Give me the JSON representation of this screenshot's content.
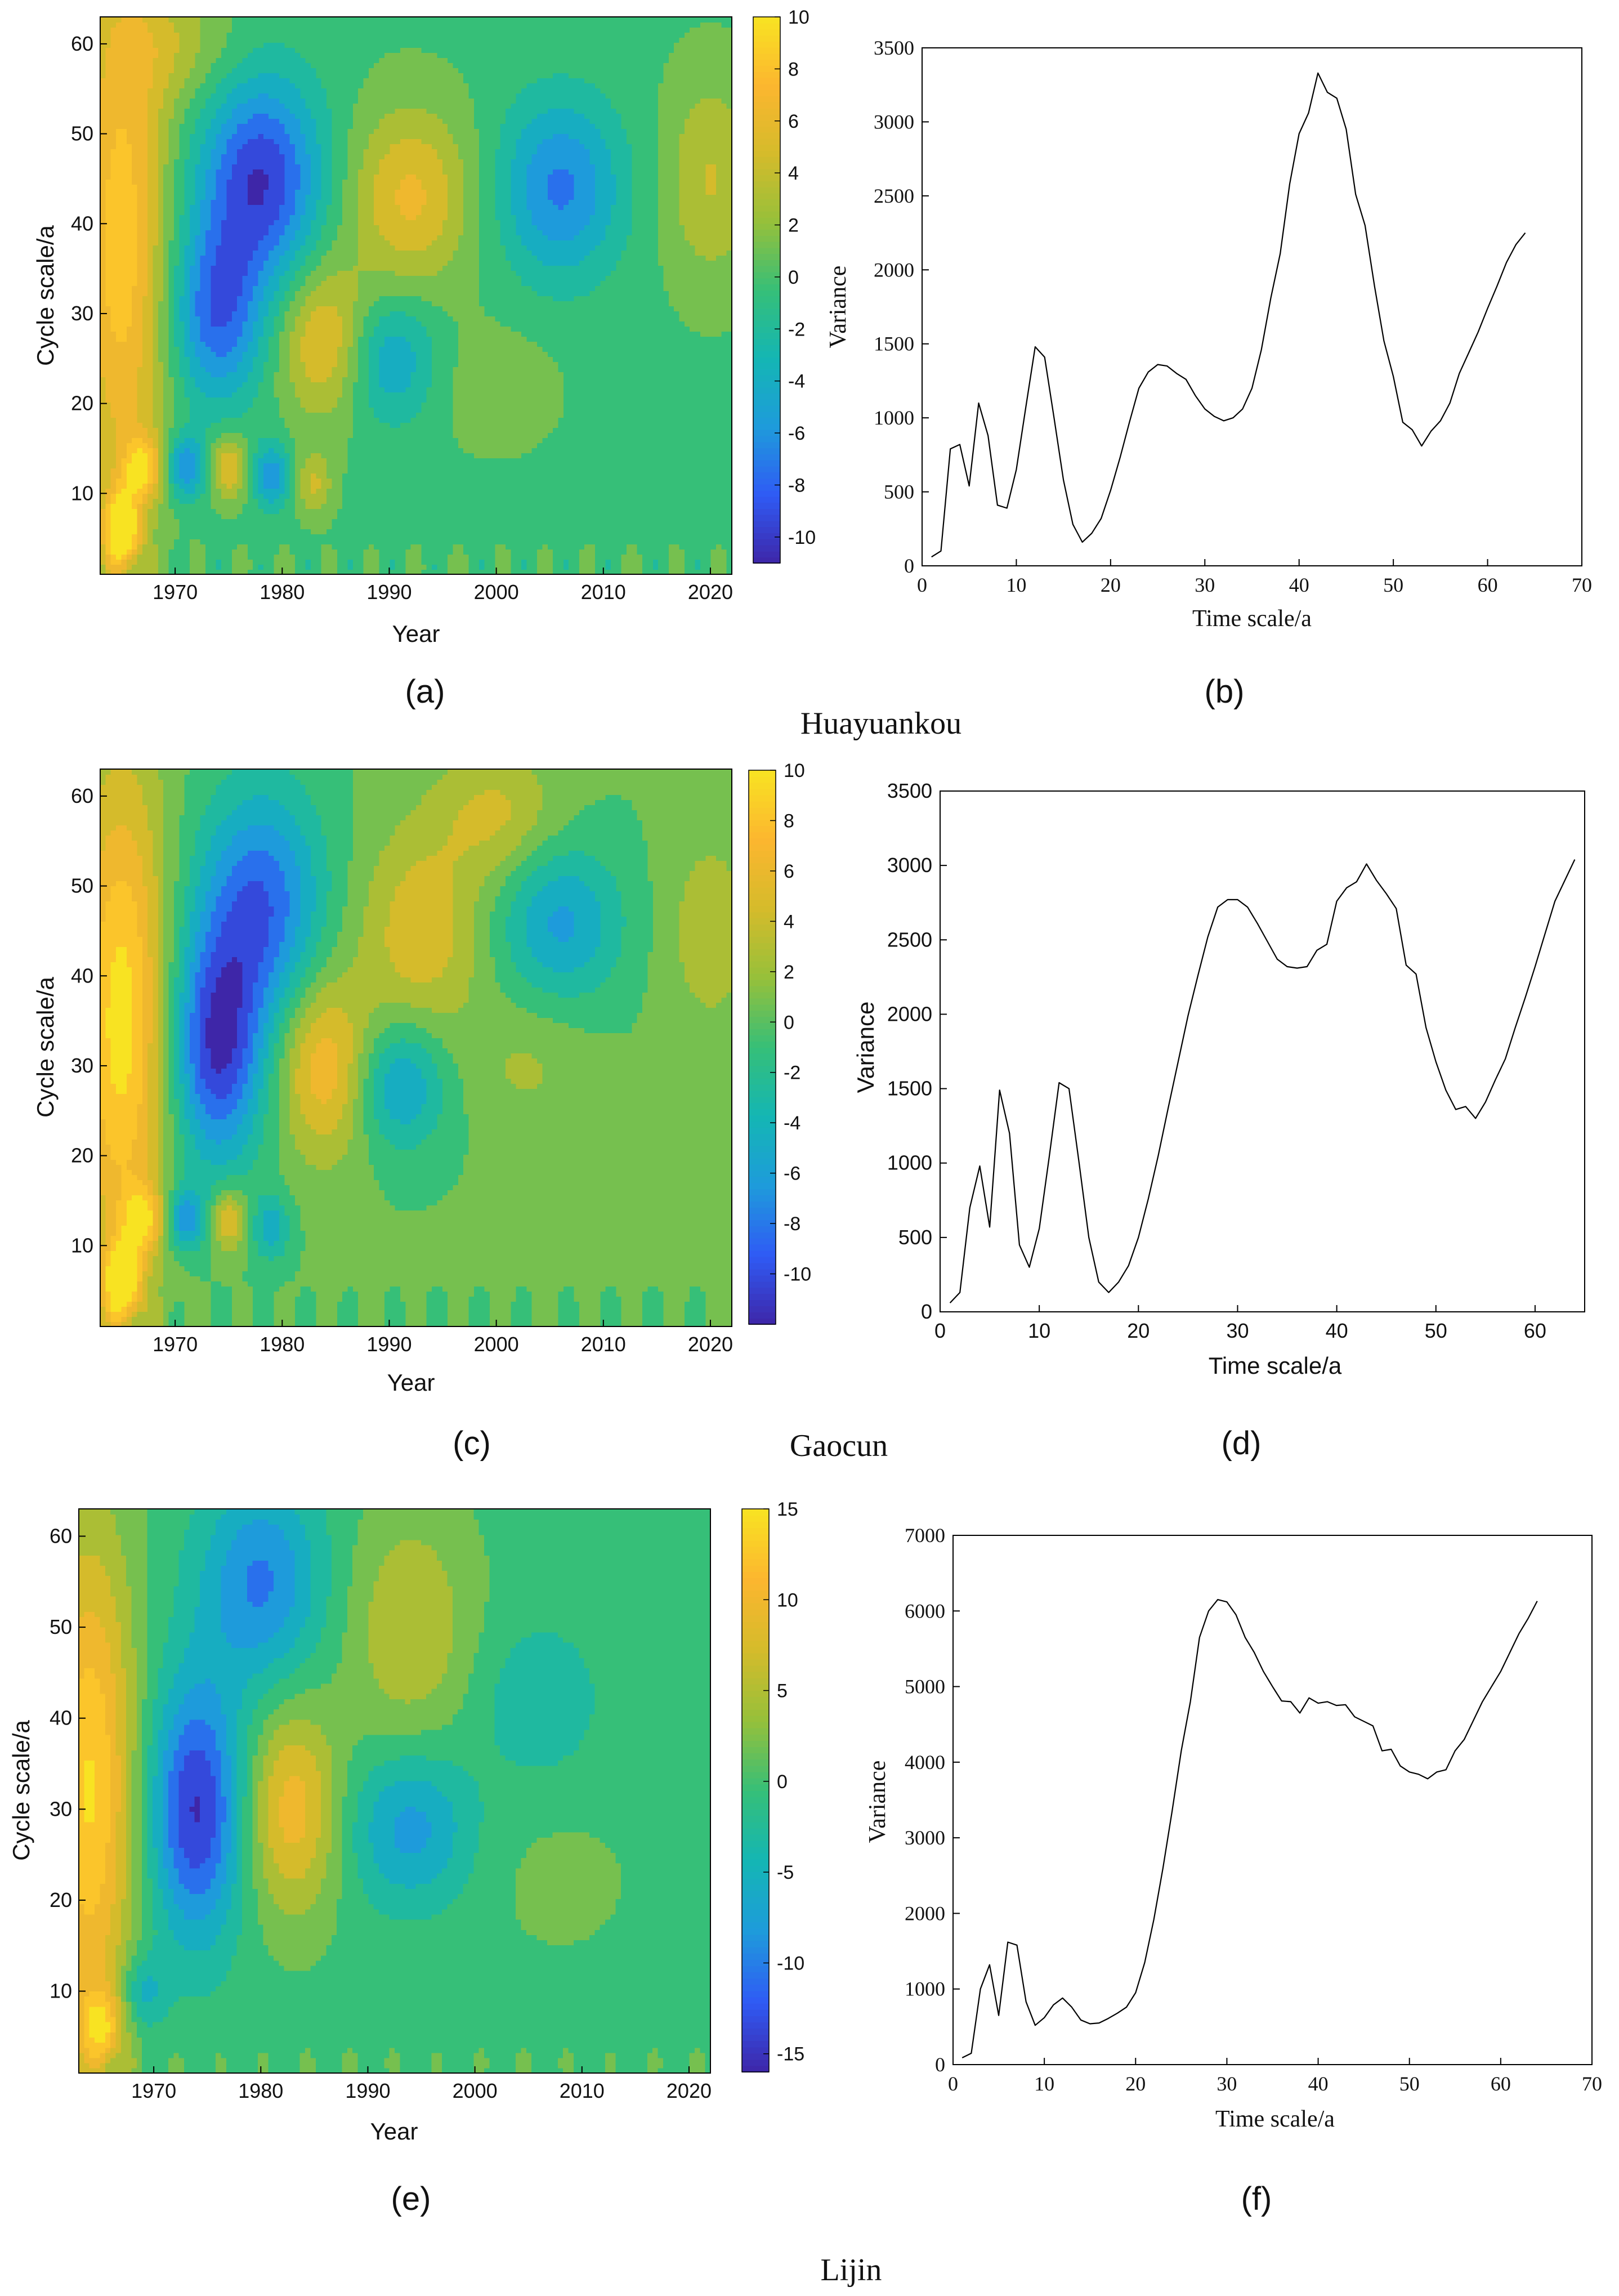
{
  "figure": {
    "panel_labels": [
      "(a)",
      "(b)",
      "(c)",
      "(d)",
      "(e)",
      "(f)"
    ],
    "station_names": [
      "Huayuankou",
      "Gaocun",
      "Lijin"
    ]
  },
  "chart_data": [
    {
      "id": "a",
      "type": "heatmap",
      "station": "Huayuankou",
      "title": "",
      "xlabel": "Year",
      "ylabel": "Cycle scale/a",
      "xlim": [
        1963,
        2022
      ],
      "ylim": [
        1,
        63
      ],
      "xticks": [
        1970,
        1980,
        1990,
        2000,
        2010,
        2020
      ],
      "yticks": [
        10,
        20,
        30,
        40,
        50,
        60
      ],
      "colorbar": {
        "range": [
          -11,
          10
        ],
        "ticks": [
          10,
          8,
          6,
          4,
          2,
          0,
          -2,
          -4,
          -6,
          -8,
          -10
        ]
      },
      "colormap": [
        "#3e26a8",
        "#2f5bf5",
        "#1e9bdb",
        "#14b6b4",
        "#36bf78",
        "#96c03a",
        "#d5bb2b",
        "#fcb62f",
        "#f8e322"
      ],
      "ridges": [
        {
          "year": 1965,
          "scale": 38,
          "value": 8.5,
          "sx": 3,
          "ss": 22
        },
        {
          "year": 1965,
          "scale": 6,
          "value": 11,
          "sx": 1.2,
          "ss": 3
        },
        {
          "year": 1967,
          "scale": 13,
          "value": 7,
          "sx": 1.3,
          "ss": 2.5
        },
        {
          "year": 1971,
          "scale": 13,
          "value": -7,
          "sx": 1.3,
          "ss": 2.5
        },
        {
          "year": 1975,
          "scale": 13,
          "value": 6,
          "sx": 1.2,
          "ss": 2.5
        },
        {
          "year": 1979,
          "scale": 12,
          "value": -6,
          "sx": 1.2,
          "ss": 2.5
        },
        {
          "year": 1983,
          "scale": 11,
          "value": 4,
          "sx": 1.2,
          "ss": 2.5
        },
        {
          "year": 1974,
          "scale": 30,
          "value": -8,
          "sx": 3,
          "ss": 7
        },
        {
          "year": 1978,
          "scale": 45,
          "value": -10,
          "sx": 4,
          "ss": 8
        },
        {
          "year": 1984,
          "scale": 27,
          "value": 6,
          "sx": 3,
          "ss": 6
        },
        {
          "year": 1992,
          "scale": 43,
          "value": 6,
          "sx": 4,
          "ss": 7
        },
        {
          "year": 1990,
          "scale": 25,
          "value": -5,
          "sx": 3,
          "ss": 5
        },
        {
          "year": 2006,
          "scale": 44,
          "value": -7,
          "sx": 4,
          "ss": 7
        },
        {
          "year": 2020,
          "scale": 45,
          "value": 4,
          "sx": 3,
          "ss": 8
        },
        {
          "year": 2000,
          "scale": 22,
          "value": 1.5,
          "sx": 4,
          "ss": 5
        },
        {
          "year": 1970,
          "scale": 60,
          "value": 3,
          "sx": 4,
          "ss": 5
        }
      ]
    },
    {
      "id": "b",
      "type": "line",
      "station": "Huayuankou",
      "title": "",
      "xlabel": "Time scale/a",
      "ylabel": "Variance",
      "xlim": [
        0,
        70
      ],
      "ylim": [
        0,
        3500
      ],
      "xticks": [
        0,
        10,
        20,
        30,
        40,
        50,
        60,
        70
      ],
      "yticks": [
        0,
        500,
        1000,
        1500,
        2000,
        2500,
        3000,
        3500
      ],
      "x": [
        1,
        2,
        3,
        4,
        5,
        6,
        7,
        8,
        9,
        10,
        11,
        12,
        13,
        14,
        15,
        16,
        17,
        18,
        19,
        20,
        21,
        22,
        23,
        24,
        25,
        26,
        27,
        28,
        29,
        30,
        31,
        32,
        33,
        34,
        35,
        36,
        37,
        38,
        39,
        40,
        41,
        42,
        43,
        44,
        45,
        46,
        47,
        48,
        49,
        50,
        51,
        52,
        53,
        54,
        55,
        56,
        57,
        58,
        59,
        60,
        61,
        62,
        63,
        64
      ],
      "y": [
        60,
        100,
        790,
        820,
        540,
        1100,
        880,
        410,
        390,
        650,
        1070,
        1480,
        1410,
        1000,
        580,
        280,
        160,
        220,
        320,
        510,
        730,
        970,
        1200,
        1310,
        1360,
        1350,
        1300,
        1260,
        1150,
        1060,
        1010,
        980,
        1000,
        1060,
        1200,
        1460,
        1810,
        2110,
        2580,
        2920,
        3060,
        3330,
        3200,
        3160,
        2950,
        2510,
        2300,
        1890,
        1520,
        1280,
        970,
        920,
        810,
        910,
        980,
        1100,
        1300,
        1440,
        1580,
        1740,
        1890,
        2050,
        2170,
        2250
      ]
    },
    {
      "id": "c",
      "type": "heatmap",
      "station": "Gaocun",
      "title": "",
      "xlabel": "Year",
      "ylabel": "Cycle scale/a",
      "xlim": [
        1963,
        2022
      ],
      "ylim": [
        1,
        63
      ],
      "xticks": [
        1970,
        1980,
        1990,
        2000,
        2010,
        2020
      ],
      "yticks": [
        10,
        20,
        30,
        40,
        50,
        60
      ],
      "colorbar": {
        "range": [
          -12,
          10
        ],
        "ticks": [
          10,
          8,
          6,
          4,
          2,
          0,
          -2,
          -4,
          -6,
          -8,
          -10
        ]
      },
      "colormap": [
        "#3e26a8",
        "#2f5bf5",
        "#1e9bdb",
        "#14b6b4",
        "#36bf78",
        "#96c03a",
        "#d5bb2b",
        "#fcb62f",
        "#f8e322"
      ],
      "ridges": [
        {
          "year": 1965,
          "scale": 35,
          "value": 10,
          "sx": 3,
          "ss": 20
        },
        {
          "year": 1965,
          "scale": 6,
          "value": 11,
          "sx": 1.2,
          "ss": 3
        },
        {
          "year": 1967,
          "scale": 13,
          "value": 7,
          "sx": 1.3,
          "ss": 2.5
        },
        {
          "year": 1971,
          "scale": 13,
          "value": -7,
          "sx": 1.3,
          "ss": 2.5
        },
        {
          "year": 1975,
          "scale": 13,
          "value": 6,
          "sx": 1.2,
          "ss": 2.5
        },
        {
          "year": 1979,
          "scale": 12,
          "value": -5,
          "sx": 1.2,
          "ss": 2.5
        },
        {
          "year": 1974,
          "scale": 32,
          "value": -11,
          "sx": 3,
          "ss": 9
        },
        {
          "year": 1978,
          "scale": 48,
          "value": -9,
          "sx": 4,
          "ss": 9
        },
        {
          "year": 1984,
          "scale": 30,
          "value": 7,
          "sx": 3,
          "ss": 7
        },
        {
          "year": 1993,
          "scale": 45,
          "value": 5,
          "sx": 4,
          "ss": 8
        },
        {
          "year": 1991,
          "scale": 28,
          "value": -6,
          "sx": 3,
          "ss": 5
        },
        {
          "year": 2003,
          "scale": 30,
          "value": 2,
          "sx": 4,
          "ss": 5
        },
        {
          "year": 2006,
          "scale": 46,
          "value": -6,
          "sx": 4,
          "ss": 6
        },
        {
          "year": 2020,
          "scale": 45,
          "value": 3,
          "sx": 3,
          "ss": 8
        },
        {
          "year": 2000,
          "scale": 58,
          "value": 4,
          "sx": 4,
          "ss": 5
        }
      ]
    },
    {
      "id": "d",
      "type": "line",
      "station": "Gaocun",
      "title": "",
      "xlabel": "Time scale/a",
      "ylabel": "Variance",
      "xlim": [
        0,
        65
      ],
      "ylim": [
        0,
        3500
      ],
      "xticks": [
        0,
        10,
        20,
        30,
        40,
        50,
        60
      ],
      "yticks": [
        0,
        500,
        1000,
        1500,
        2000,
        2500,
        3000,
        3500
      ],
      "x": [
        1,
        2,
        3,
        4,
        5,
        6,
        7,
        8,
        9,
        10,
        11,
        12,
        13,
        14,
        15,
        16,
        17,
        18,
        19,
        20,
        21,
        22,
        23,
        24,
        25,
        26,
        27,
        28,
        29,
        30,
        31,
        32,
        33,
        34,
        35,
        36,
        37,
        38,
        39,
        40,
        41,
        42,
        43,
        44,
        45,
        46,
        47,
        48,
        49,
        50,
        51,
        52,
        53,
        54,
        55,
        56,
        57,
        58,
        59,
        60,
        61,
        62,
        63,
        64
      ],
      "y": [
        60,
        130,
        700,
        980,
        570,
        1490,
        1200,
        450,
        300,
        560,
        1040,
        1540,
        1500,
        1010,
        500,
        200,
        130,
        200,
        310,
        500,
        760,
        1050,
        1370,
        1680,
        1990,
        2260,
        2520,
        2720,
        2770,
        2770,
        2720,
        2610,
        2490,
        2370,
        2320,
        2310,
        2320,
        2430,
        2470,
        2760,
        2850,
        2890,
        3010,
        2900,
        2810,
        2710,
        2330,
        2270,
        1910,
        1680,
        1490,
        1360,
        1380,
        1300,
        1410,
        1560,
        1700,
        1910,
        2110,
        2320,
        2540,
        2760,
        2900,
        3040
      ]
    },
    {
      "id": "e",
      "type": "heatmap",
      "station": "Lijin",
      "title": "",
      "xlabel": "Year",
      "ylabel": "Cycle scale/a",
      "xlim": [
        1963,
        2022
      ],
      "ylim": [
        1,
        63
      ],
      "xticks": [
        1970,
        1980,
        1990,
        2000,
        2010,
        2020
      ],
      "yticks": [
        10,
        20,
        30,
        40,
        50,
        60
      ],
      "colorbar": {
        "range": [
          -16,
          15
        ],
        "ticks": [
          15,
          10,
          5,
          0,
          -5,
          -10,
          -15
        ]
      },
      "colormap": [
        "#3e26a8",
        "#2f5bf5",
        "#1e9bdb",
        "#14b6b4",
        "#36bf78",
        "#96c03a",
        "#d5bb2b",
        "#fcb62f",
        "#f8e322"
      ],
      "ridges": [
        {
          "year": 1964,
          "scale": 32,
          "value": 14,
          "sx": 3,
          "ss": 20
        },
        {
          "year": 1965,
          "scale": 6,
          "value": 10,
          "sx": 1.5,
          "ss": 3
        },
        {
          "year": 1969,
          "scale": 10,
          "value": -6,
          "sx": 1.5,
          "ss": 3
        },
        {
          "year": 1974,
          "scale": 30,
          "value": -15,
          "sx": 3,
          "ss": 10
        },
        {
          "year": 1980,
          "scale": 55,
          "value": -10,
          "sx": 4,
          "ss": 8
        },
        {
          "year": 1983,
          "scale": 30,
          "value": 10,
          "sx": 3,
          "ss": 8
        },
        {
          "year": 1994,
          "scale": 50,
          "value": 6,
          "sx": 4,
          "ss": 9
        },
        {
          "year": 1994,
          "scale": 28,
          "value": -8,
          "sx": 4,
          "ss": 6
        },
        {
          "year": 2006,
          "scale": 42,
          "value": -4,
          "sx": 4,
          "ss": 6
        },
        {
          "year": 2008,
          "scale": 22,
          "value": 1.5,
          "sx": 5,
          "ss": 6
        }
      ]
    },
    {
      "id": "f",
      "type": "line",
      "station": "Lijin",
      "title": "",
      "xlabel": "Time scale/a",
      "ylabel": "Variance",
      "xlim": [
        0,
        70
      ],
      "ylim": [
        0,
        7000
      ],
      "xticks": [
        0,
        10,
        20,
        30,
        40,
        50,
        60,
        70
      ],
      "yticks": [
        0,
        1000,
        2000,
        3000,
        4000,
        5000,
        6000,
        7000
      ],
      "x": [
        1,
        2,
        3,
        4,
        5,
        6,
        7,
        8,
        9,
        10,
        11,
        12,
        13,
        14,
        15,
        16,
        17,
        18,
        19,
        20,
        21,
        22,
        23,
        24,
        25,
        26,
        27,
        28,
        29,
        30,
        31,
        32,
        33,
        34,
        35,
        36,
        37,
        38,
        39,
        40,
        41,
        42,
        43,
        44,
        45,
        46,
        47,
        48,
        49,
        50,
        51,
        52,
        53,
        54,
        55,
        56,
        57,
        58,
        59,
        60,
        61,
        62,
        63,
        64
      ],
      "y": [
        90,
        150,
        1000,
        1320,
        650,
        1620,
        1580,
        830,
        520,
        620,
        790,
        880,
        760,
        590,
        540,
        550,
        610,
        680,
        760,
        950,
        1350,
        1920,
        2600,
        3350,
        4150,
        4800,
        5650,
        6000,
        6150,
        6120,
        5950,
        5650,
        5450,
        5200,
        5000,
        4810,
        4800,
        4650,
        4850,
        4780,
        4800,
        4750,
        4760,
        4600,
        4540,
        4480,
        4150,
        4170,
        3950,
        3870,
        3840,
        3780,
        3870,
        3900,
        4150,
        4300,
        4550,
        4800,
        5000,
        5200,
        5450,
        5700,
        5900,
        6130
      ]
    }
  ]
}
